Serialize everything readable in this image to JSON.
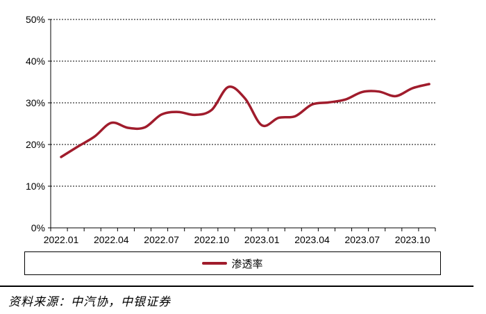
{
  "colors": {
    "series": "#A01C2C",
    "grid": "#000000",
    "axis": "#000000"
  },
  "chart_data": {
    "type": "line",
    "title": "",
    "xlabel": "",
    "ylabel": "",
    "ylim": [
      0,
      50
    ],
    "yticks": [
      0,
      10,
      20,
      30,
      40,
      50
    ],
    "ytick_labels": [
      "0%",
      "10%",
      "20%",
      "30%",
      "40%",
      "50%"
    ],
    "xtick_labels": [
      "2022.01",
      "2022.04",
      "2022.07",
      "2022.10",
      "2023.01",
      "2023.04",
      "2023.07",
      "2023.10"
    ],
    "grid": "horizontal-dashed",
    "legend_position": "bottom",
    "x": [
      "2022.01",
      "2022.02",
      "2022.03",
      "2022.04",
      "2022.05",
      "2022.06",
      "2022.07",
      "2022.08",
      "2022.09",
      "2022.10",
      "2022.11",
      "2022.12",
      "2023.01",
      "2023.02",
      "2023.03",
      "2023.04",
      "2023.05",
      "2023.06",
      "2023.07",
      "2023.08",
      "2023.09",
      "2023.10",
      "2023.11"
    ],
    "series": [
      {
        "name": "渗透率",
        "values": [
          17.0,
          19.5,
          21.9,
          25.2,
          24.0,
          24.1,
          27.2,
          27.8,
          27.1,
          28.3,
          33.8,
          31.0,
          24.6,
          26.4,
          26.8,
          29.6,
          30.1,
          30.8,
          32.6,
          32.7,
          31.6,
          33.5,
          34.5
        ]
      }
    ]
  },
  "legend": {
    "label": "渗透率"
  },
  "source": "资料来源：中汽协，中银证券"
}
